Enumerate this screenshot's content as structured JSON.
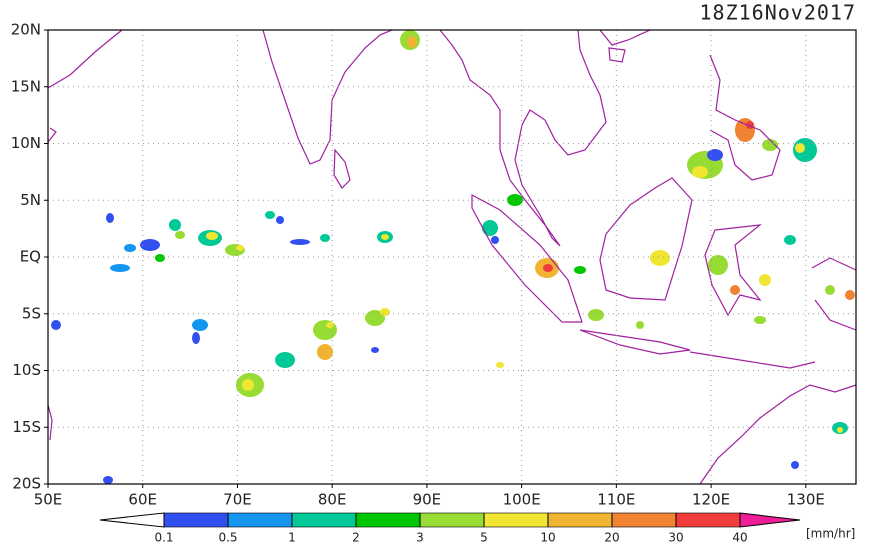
{
  "map": {
    "title": "18Z16Nov2017",
    "lat_labels": [
      {
        "value": 20,
        "label": "20N"
      },
      {
        "value": 15,
        "label": "15N"
      },
      {
        "value": 10,
        "label": "10N"
      },
      {
        "value": 5,
        "label": "5N"
      },
      {
        "value": 0,
        "label": "EQ"
      },
      {
        "value": -5,
        "label": "5S"
      },
      {
        "value": -10,
        "label": "10S"
      },
      {
        "value": -15,
        "label": "15S"
      },
      {
        "value": -20,
        "label": "20S"
      }
    ],
    "lon_labels": [
      {
        "value": 50,
        "label": "50E"
      },
      {
        "value": 60,
        "label": "60E"
      },
      {
        "value": 70,
        "label": "70E"
      },
      {
        "value": 80,
        "label": "80E"
      },
      {
        "value": 90,
        "label": "90E"
      },
      {
        "value": 100,
        "label": "100E"
      },
      {
        "value": 110,
        "label": "110E"
      },
      {
        "value": 120,
        "label": "120E"
      },
      {
        "value": 130,
        "label": "130E"
      }
    ],
    "lon_range": [
      50,
      135.3
    ],
    "lat_range": [
      -20,
      20
    ]
  },
  "legend": {
    "unit": "[mm/hr]",
    "ticks": [
      0.1,
      0.5,
      1,
      2,
      3,
      5,
      10,
      20,
      30,
      40
    ],
    "colors": [
      "#ffffff",
      "#3250f0",
      "#1496f0",
      "#00c896",
      "#00c800",
      "#96dc32",
      "#f0e632",
      "#f0b432",
      "#f08232",
      "#f03c3c",
      "#f01e96"
    ]
  }
}
